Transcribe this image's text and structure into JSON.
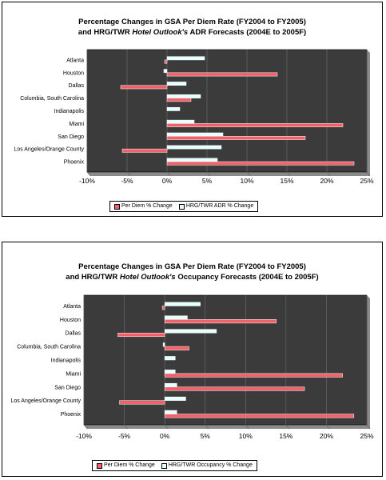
{
  "colors": {
    "plot_bg": "#3b3b3b",
    "per_diem": "#f2606a",
    "hrg": "#e6ffff",
    "bar_border": "#ffffff"
  },
  "chart_data": [
    {
      "type": "bar",
      "orientation": "horizontal",
      "title_line1": "Percentage Changes in GSA Per Diem Rate (FY2004 to FY2005)",
      "title_line2_pre": "and HRG/TWR ",
      "title_line2_italic": "Hotel Outlook's",
      "title_line2_post": " ADR Forecasts (2004E to 2005F)",
      "categories": [
        "Atlanta",
        "Houston",
        "Dallas",
        "Columbia, South Carolina",
        "Indianapolis",
        "Miami",
        "San Diego",
        "Los Angeles/Orange County",
        "Phoenix"
      ],
      "x_ticks": [
        "-10%",
        "-5%",
        "0%",
        "5%",
        "10%",
        "15%",
        "20%",
        "25%"
      ],
      "xlim": [
        -10,
        25
      ],
      "legend_placement": "bottom",
      "series": [
        {
          "name": "Per Diem % Change",
          "color": "#f2606a",
          "values": [
            -0.3,
            13.8,
            -5.8,
            3.0,
            0,
            22.0,
            17.3,
            -5.6,
            23.4
          ]
        },
        {
          "name": "HRG/TWR ADR % Change",
          "color": "#e6ffff",
          "values": [
            4.7,
            -0.4,
            2.4,
            4.2,
            1.6,
            3.4,
            7.0,
            6.8,
            6.3
          ]
        }
      ]
    },
    {
      "type": "bar",
      "orientation": "horizontal",
      "title_line1": "Percentage Changes in GSA Per Diem Rate (FY2004 to FY2005)",
      "title_line2_pre": "and HRG/TWR ",
      "title_line2_italic": "Hotel Outlook's",
      "title_line2_post": " Occupancy Forecasts (2004E to 2005F)",
      "categories": [
        "Atlanta",
        "Houston",
        "Dallas",
        "Columbia, South Carolina",
        "Indianapolis",
        "Miami",
        "San Diego",
        "Los Angeles/Orange County",
        "Phoenix"
      ],
      "x_ticks": [
        "-10%",
        "-5%",
        "0%",
        "5%",
        "10%",
        "15%",
        "20%",
        "25%"
      ],
      "xlim": [
        -10,
        25
      ],
      "legend_placement": "bottom",
      "series": [
        {
          "name": "Per Diem % Change",
          "color": "#f2606a",
          "values": [
            -0.3,
            13.8,
            -5.8,
            3.0,
            0,
            22.0,
            17.3,
            -5.6,
            23.4
          ]
        },
        {
          "name": "HRG/TWR Occupancy % Change",
          "color": "#e6ffff",
          "values": [
            4.4,
            2.8,
            6.4,
            -0.2,
            1.3,
            1.3,
            1.5,
            2.6,
            1.5
          ]
        }
      ]
    }
  ]
}
